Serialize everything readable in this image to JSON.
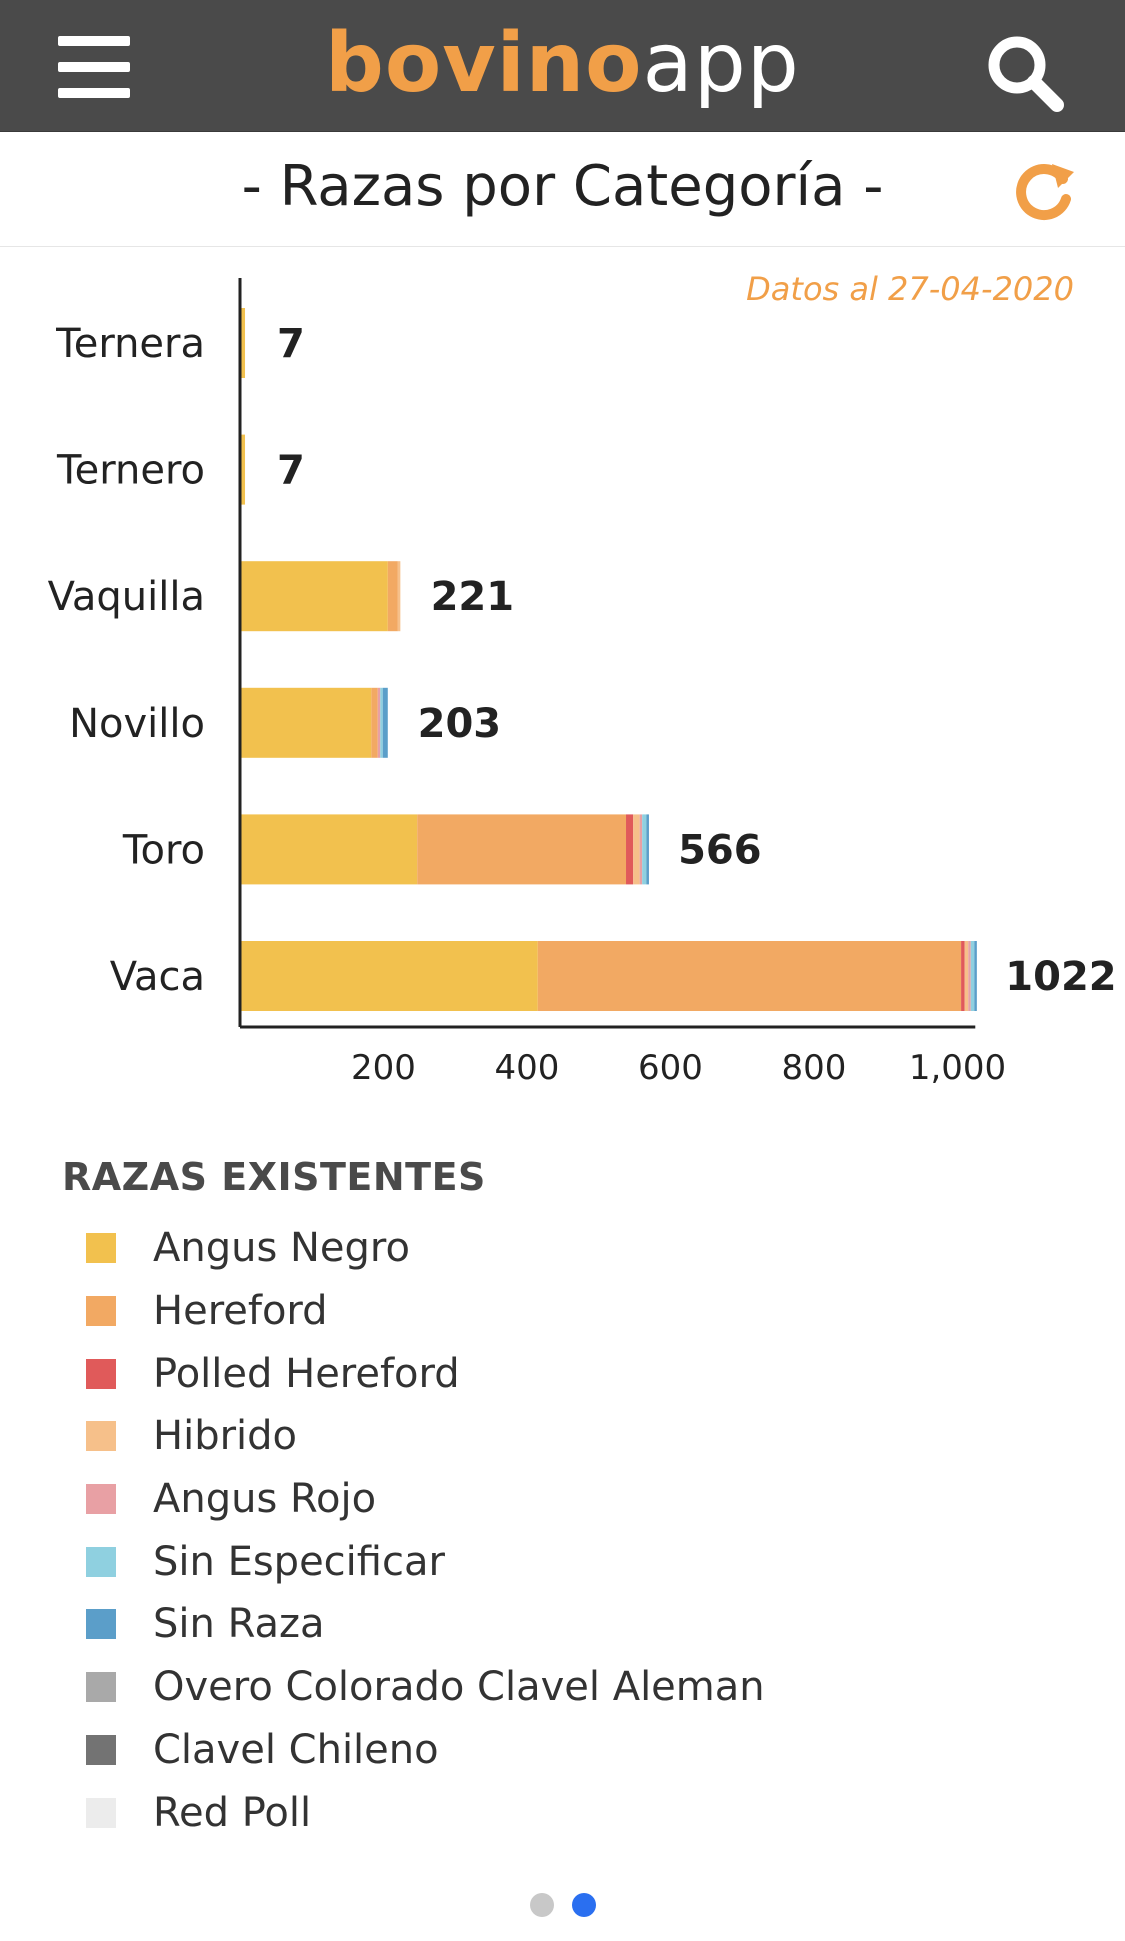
{
  "app": {
    "logo_bold": "bovino",
    "logo_light": "app"
  },
  "page": {
    "title": "- Razas por Categoría -",
    "date_note": "Datos al 27-04-2020"
  },
  "colors": {
    "header_bg": "#4a4a4a",
    "accent": "#f19f48",
    "pager_active": "#2a6ff0",
    "pager_inactive": "#c8c8c8"
  },
  "icons": {
    "menu": "hamburger-menu-icon",
    "search": "search-icon",
    "refresh": "refresh-icon"
  },
  "chart_data": {
    "type": "bar",
    "orientation": "horizontal",
    "stacked": true,
    "categories": [
      "Ternera",
      "Ternero",
      "Vaquilla",
      "Novillo",
      "Toro",
      "Vaca"
    ],
    "totals": [
      7,
      7,
      221,
      203,
      566,
      1022
    ],
    "series": [
      {
        "name": "Angus Negro",
        "color": "#f2c14e",
        "values": [
          7,
          7,
          206,
          183,
          247,
          415
        ]
      },
      {
        "name": "Hereford",
        "color": "#f2a963",
        "values": [
          0,
          0,
          14,
          9,
          291,
          590
        ]
      },
      {
        "name": "Polled Hereford",
        "color": "#e05a5a",
        "values": [
          0,
          0,
          0,
          0,
          10,
          5
        ]
      },
      {
        "name": "Hibrido",
        "color": "#f6c08a",
        "values": [
          0,
          0,
          1,
          0,
          9,
          5
        ]
      },
      {
        "name": "Angus Rojo",
        "color": "#e8a0a4",
        "values": [
          0,
          0,
          0,
          2,
          2,
          1
        ]
      },
      {
        "name": "Sin Especificar",
        "color": "#8fd0e0",
        "values": [
          0,
          0,
          0,
          2,
          6,
          5
        ]
      },
      {
        "name": "Sin Raza",
        "color": "#5b9ec9",
        "values": [
          0,
          0,
          0,
          7,
          1,
          1
        ]
      },
      {
        "name": "Overo Colorado Clavel Aleman",
        "color": "#a9a9a9",
        "values": [
          0,
          0,
          0,
          0,
          0,
          0
        ]
      },
      {
        "name": "Clavel Chileno",
        "color": "#737373",
        "values": [
          0,
          0,
          0,
          0,
          0,
          0
        ]
      },
      {
        "name": "Red Poll",
        "color": "#ececec",
        "values": [
          0,
          0,
          0,
          0,
          0,
          0
        ]
      }
    ],
    "xticks": [
      "200",
      "400",
      "600",
      "800",
      "1,000"
    ],
    "xlim": [
      0,
      1022
    ],
    "xlabel": "",
    "ylabel": "",
    "grid": false,
    "legend_title": "RAZAS EXISTENTES",
    "legend_position": "bottom"
  }
}
